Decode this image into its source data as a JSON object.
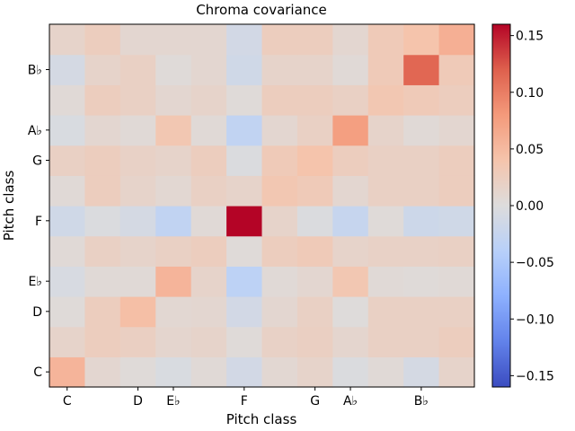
{
  "chart_data": {
    "type": "heatmap",
    "title": "Chroma covariance",
    "xlabel": "Pitch class",
    "ylabel": "Pitch class",
    "x_tick_labels": [
      "C",
      "D",
      "E♭",
      "F",
      "G",
      "A♭",
      "B♭"
    ],
    "x_tick_indices": [
      0,
      2,
      3,
      5,
      7,
      8,
      10
    ],
    "y_tick_labels": [
      "C",
      "D",
      "E♭",
      "F",
      "G",
      "A♭",
      "B♭"
    ],
    "y_tick_indices": [
      0,
      2,
      3,
      5,
      7,
      8,
      10
    ],
    "row_order_bottom_to_top": true,
    "values": [
      [
        0.055,
        0.01,
        0.003,
        -0.005,
        0.005,
        -0.012,
        0.008,
        0.015,
        -0.003,
        0.005,
        -0.01,
        0.015
      ],
      [
        0.015,
        0.025,
        0.022,
        0.012,
        0.015,
        0.003,
        0.018,
        0.022,
        0.012,
        0.02,
        0.02,
        0.025
      ],
      [
        0.003,
        0.025,
        0.045,
        0.008,
        0.01,
        -0.012,
        0.01,
        0.02,
        0.002,
        0.02,
        0.02,
        0.02
      ],
      [
        -0.007,
        0.005,
        0.005,
        0.055,
        0.015,
        -0.035,
        0.005,
        0.01,
        0.035,
        0.005,
        0.003,
        0.005
      ],
      [
        0.005,
        0.02,
        0.015,
        0.02,
        0.025,
        0.003,
        0.025,
        0.03,
        0.015,
        0.018,
        0.018,
        0.02
      ],
      [
        -0.015,
        -0.003,
        -0.01,
        -0.03,
        0.005,
        0.16,
        0.015,
        -0.003,
        -0.025,
        0.003,
        -0.018,
        -0.015
      ],
      [
        0.005,
        0.025,
        0.015,
        0.008,
        0.02,
        0.015,
        0.035,
        0.03,
        0.01,
        0.02,
        0.02,
        0.025
      ],
      [
        0.02,
        0.025,
        0.018,
        0.015,
        0.025,
        -0.003,
        0.03,
        0.04,
        0.025,
        0.02,
        0.02,
        0.025
      ],
      [
        -0.005,
        0.01,
        0.005,
        0.035,
        0.005,
        -0.03,
        0.01,
        0.02,
        0.075,
        0.015,
        0.005,
        0.01
      ],
      [
        0.005,
        0.025,
        0.02,
        0.01,
        0.015,
        0.003,
        0.025,
        0.025,
        0.02,
        0.035,
        0.03,
        0.025
      ],
      [
        -0.01,
        0.015,
        0.02,
        0.003,
        0.01,
        -0.015,
        0.015,
        0.015,
        0.005,
        0.03,
        0.115,
        0.03
      ],
      [
        0.015,
        0.025,
        0.01,
        0.01,
        0.01,
        -0.012,
        0.025,
        0.025,
        0.01,
        0.03,
        0.04,
        0.06
      ]
    ],
    "colormap": "coolwarm",
    "vmin": -0.16,
    "vmax": 0.16,
    "colorbar_ticks": [
      0.15,
      0.1,
      0.05,
      0.0,
      -0.05,
      -0.1,
      -0.15
    ],
    "colorbar_tick_labels": [
      "0.15",
      "0.10",
      "0.05",
      "0.00",
      "−0.05",
      "−0.10",
      "−0.15"
    ]
  }
}
